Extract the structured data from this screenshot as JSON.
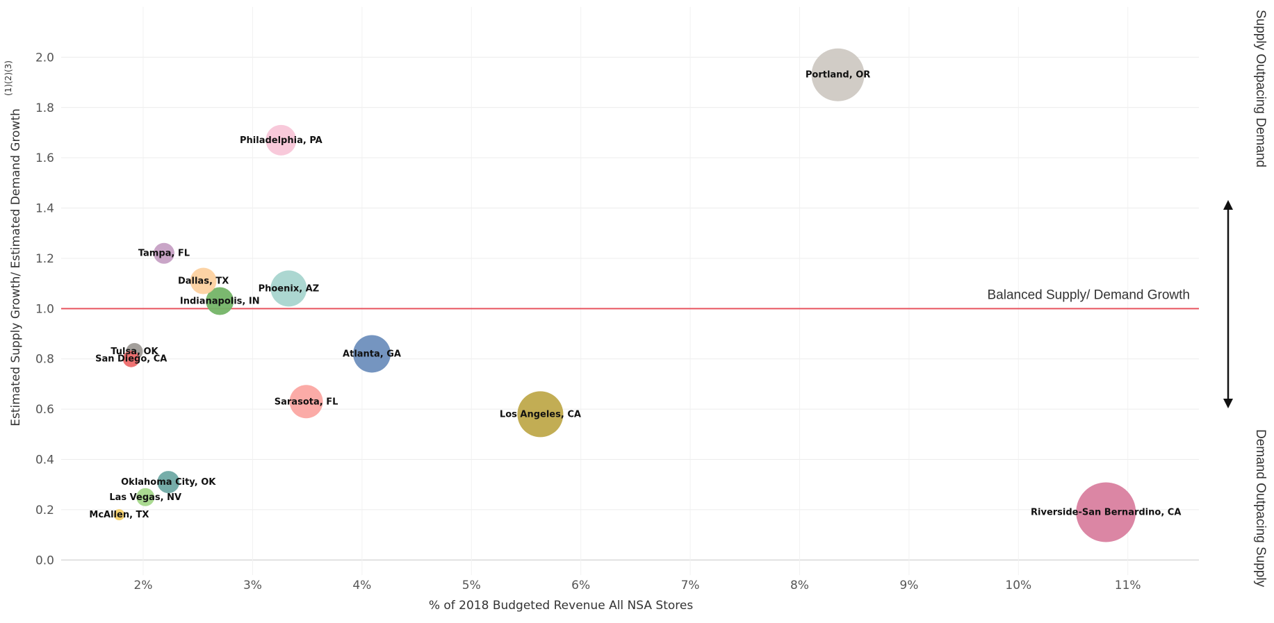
{
  "chart_data": {
    "type": "scatter",
    "xlabel": "% of 2018 Budgeted Revenue All NSA Stores",
    "ylabel": "Estimated Supply Growth/ Estimated Demand Growth",
    "ylabel_superscript": "(1)(2)(3)",
    "xlim": [
      1.25,
      11.65
    ],
    "ylim": [
      -0.06,
      2.2
    ],
    "x_ticks": [
      2,
      3,
      4,
      5,
      6,
      7,
      8,
      9,
      10,
      11
    ],
    "x_tick_labels": [
      "2%",
      "3%",
      "4%",
      "5%",
      "6%",
      "7%",
      "8%",
      "9%",
      "10%",
      "11%"
    ],
    "y_ticks": [
      0.0,
      0.2,
      0.4,
      0.6,
      0.8,
      1.0,
      1.2,
      1.4,
      1.6,
      1.8,
      2.0
    ],
    "y_tick_labels": [
      "0.0",
      "0.2",
      "0.4",
      "0.6",
      "0.8",
      "1.0",
      "1.2",
      "1.4",
      "1.6",
      "1.8",
      "2.0"
    ],
    "grid": true,
    "reference_line": {
      "y": 1.0,
      "label": "Balanced Supply/ Demand Growth",
      "color": "#e8545f"
    },
    "right_labels": {
      "top": "Supply Outpacing Demand",
      "bottom": "Demand Outpacing Supply"
    },
    "points": [
      {
        "label": "Portland, OR",
        "x": 8.35,
        "y": 1.93,
        "r": 38,
        "color": "#cfc9c3"
      },
      {
        "label": "Philadelphia, PA",
        "x": 3.26,
        "y": 1.67,
        "r": 22,
        "color": "#f8c6d8"
      },
      {
        "label": "Tampa, FL",
        "x": 2.19,
        "y": 1.22,
        "r": 15,
        "color": "#c6a0c4"
      },
      {
        "label": "Dallas, TX",
        "x": 2.55,
        "y": 1.11,
        "r": 19,
        "color": "#fcd1a0"
      },
      {
        "label": "Phoenix, AZ",
        "x": 3.33,
        "y": 1.08,
        "r": 26,
        "color": "#a8d5cf"
      },
      {
        "label": "Indianapolis, IN",
        "x": 2.7,
        "y": 1.03,
        "r": 20,
        "color": "#74b467"
      },
      {
        "label": "Tulsa, OK",
        "x": 1.92,
        "y": 0.83,
        "r": 12,
        "color": "#9e9a96"
      },
      {
        "label": "San Diego, CA",
        "x": 1.89,
        "y": 0.8,
        "r": 12,
        "color": "#ee6b6b"
      },
      {
        "label": "Atlanta, GA",
        "x": 4.09,
        "y": 0.82,
        "r": 27,
        "color": "#6e8fbd"
      },
      {
        "label": "Sarasota, FL",
        "x": 3.49,
        "y": 0.63,
        "r": 24,
        "color": "#fba7a2"
      },
      {
        "label": "Los Angeles, CA",
        "x": 5.63,
        "y": 0.58,
        "r": 33,
        "color": "#bfa94b"
      },
      {
        "label": "Oklahoma City, OK",
        "x": 2.23,
        "y": 0.31,
        "r": 16,
        "color": "#6fa9a4"
      },
      {
        "label": "Las Vegas, NV",
        "x": 2.02,
        "y": 0.25,
        "r": 13,
        "color": "#a5d88b"
      },
      {
        "label": "McAllen, TX",
        "x": 1.78,
        "y": 0.18,
        "r": 8,
        "color": "#f5d16a"
      },
      {
        "label": "Riverside-San Bernardino, CA",
        "x": 10.8,
        "y": 0.19,
        "r": 43,
        "color": "#d9809f"
      }
    ]
  }
}
